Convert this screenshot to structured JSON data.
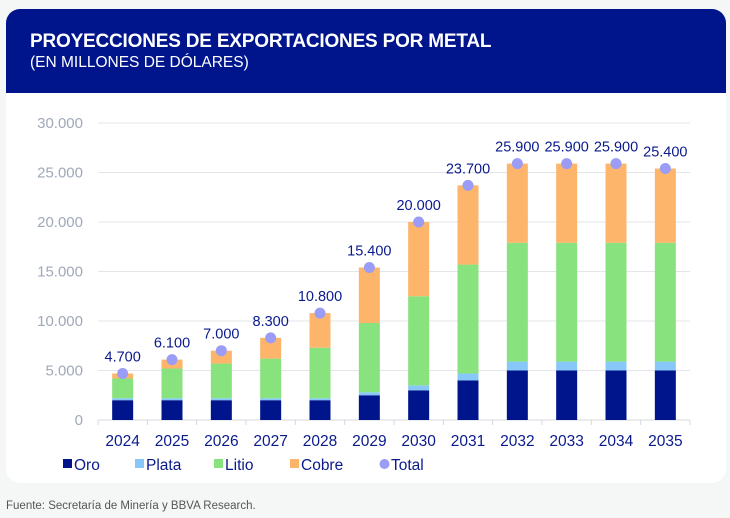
{
  "header": {
    "title": "PROYECCIONES DE EXPORTACIONES POR METAL",
    "subtitle": "(EN MILLONES DE DÓLARES)"
  },
  "source": "Fuente: Secretaría de Minería y BBVA Research.",
  "colors": {
    "header_bg": "#00148c",
    "oro": "#00148c",
    "plata": "#88c8f8",
    "litio": "#88e27e",
    "cobre": "#fdb46b",
    "total": "#9a9cf5",
    "label": "#0a1a8c",
    "axis_tick": "#a0a8b8"
  },
  "chart_data": {
    "type": "bar",
    "stacked": true,
    "title": "PROYECCIONES DE EXPORTACIONES POR METAL",
    "subtitle": "(EN MILLONES DE DÓLARES)",
    "xlabel": "",
    "ylabel": "",
    "ylim": [
      0,
      30000
    ],
    "yticks": [
      0,
      5000,
      10000,
      15000,
      20000,
      25000,
      30000
    ],
    "ytick_labels": [
      "0",
      "5.000",
      "10.000",
      "15.000",
      "20.000",
      "25.000",
      "30.000"
    ],
    "grid": true,
    "legend_position": "bottom-left",
    "categories": [
      "2024",
      "2025",
      "2026",
      "2027",
      "2028",
      "2029",
      "2030",
      "2031",
      "2032",
      "2033",
      "2034",
      "2035"
    ],
    "series": [
      {
        "name": "Oro",
        "values": [
          2000,
          2000,
          2000,
          2000,
          2000,
          2500,
          3000,
          4000,
          5000,
          5000,
          5000,
          5000
        ]
      },
      {
        "name": "Plata",
        "values": [
          200,
          200,
          200,
          200,
          200,
          300,
          500,
          700,
          900,
          900,
          900,
          900
        ]
      },
      {
        "name": "Litio",
        "values": [
          2000,
          3000,
          3500,
          4000,
          5100,
          7000,
          9000,
          11000,
          12000,
          12000,
          12000,
          12000
        ]
      },
      {
        "name": "Cobre",
        "values": [
          500,
          900,
          1300,
          2100,
          3500,
          5600,
          7500,
          8000,
          8000,
          8000,
          8000,
          7500
        ]
      }
    ],
    "total": {
      "name": "Total",
      "values": [
        4700,
        6100,
        7000,
        8300,
        10800,
        15400,
        20000,
        23700,
        25900,
        25900,
        25900,
        25400
      ],
      "labels": [
        "4.700",
        "6.100",
        "7.000",
        "8.300",
        "10.800",
        "15.400",
        "20.000",
        "23.700",
        "25.900",
        "25.900",
        "25.900",
        "25.400"
      ]
    },
    "legend": [
      "Oro",
      "Plata",
      "Litio",
      "Cobre",
      "Total"
    ]
  }
}
